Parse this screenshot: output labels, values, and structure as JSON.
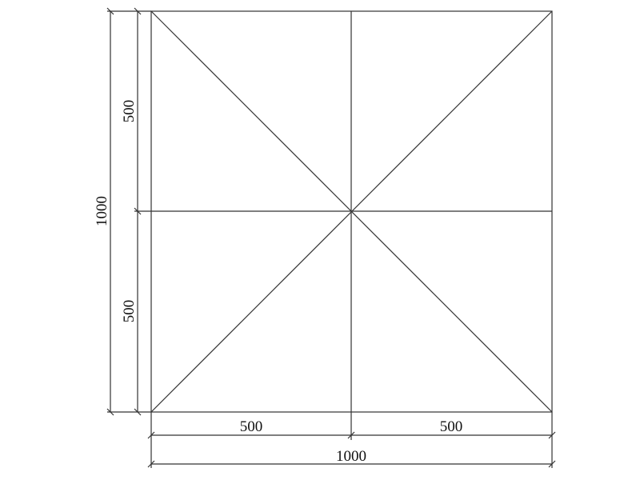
{
  "drawing": {
    "line_color": "#333333",
    "dimensions": {
      "bottom_left": "500",
      "bottom_right": "500",
      "bottom_total": "1000",
      "left_top": "500",
      "left_bottom": "500",
      "left_total": "1000"
    }
  }
}
